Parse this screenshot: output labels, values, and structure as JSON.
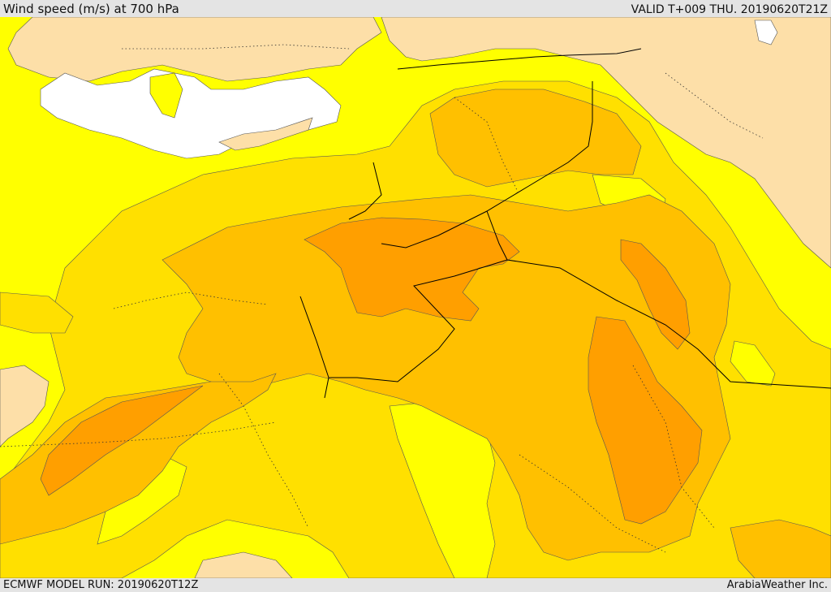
{
  "header": {
    "title": "Wind speed (m/s) at 700 hPa",
    "valid": "VALID T+009 THU. 20190620T21Z"
  },
  "footer": {
    "model_run": "ECMWF MODEL RUN: 20190620T12Z",
    "credit": "ArabiaWeather Inc."
  },
  "map": {
    "variable": "Wind speed",
    "units": "m/s",
    "level": "700 hPa",
    "colors": {
      "land_light": "#fddfa8",
      "sea_white": "#ffffff",
      "band_yellow": "#ffff00",
      "band_gold": "#ffe000",
      "band_amber": "#ffc000",
      "band_orange": "#ff9f00",
      "border": "#000000"
    }
  }
}
